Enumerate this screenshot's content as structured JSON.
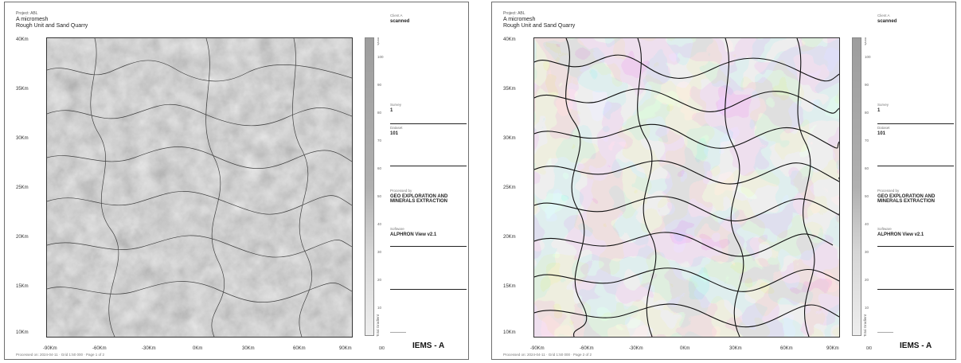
{
  "panels": [
    {
      "id": "left",
      "header": {
        "line1": "Project: ABL",
        "line2": "A micromesh",
        "line3": "Rough Unit and Sand Quarry"
      },
      "y_ticks": [
        "40Km",
        "35Km",
        "30Km",
        "25Km",
        "20Km",
        "15Km",
        "10Km"
      ],
      "x_ticks": [
        "-90Km",
        "-60Km",
        "-30Km",
        "0Km",
        "30Km",
        "60Km",
        "90Km"
      ],
      "scale": {
        "cap": "mm/s",
        "ticks": [
          "100",
          "90",
          "80",
          "70",
          "60",
          "50",
          "40",
          "30",
          "20",
          "10"
        ],
        "title": "Total Gradient",
        "min": "0/0"
      },
      "side": {
        "client_label": "Client A",
        "client_value": "scanned",
        "survey_label": "Survey",
        "survey_value": "1",
        "dataset_label": "Dataset",
        "dataset_value": "101",
        "company_label": "Processed by",
        "company_value": "GEO EXPLORATION AND MINERALS EXTRACTION",
        "software_label": "Software",
        "software_value": "ALPHRON View v2.1"
      },
      "brand": "IEMS - A",
      "footer": "Processed on: 2024-04-11 · Grid 1:50 000 · Page 1 of 2",
      "style": "shaded"
    },
    {
      "id": "right",
      "header": {
        "line1": "Project: ABL",
        "line2": "A micromesh",
        "line3": "Rough Unit and Sand Quarry"
      },
      "y_ticks": [
        "40Km",
        "35Km",
        "30Km",
        "25Km",
        "20Km",
        "15Km",
        "10Km"
      ],
      "x_ticks": [
        "-90Km",
        "-60Km",
        "-30Km",
        "0Km",
        "30Km",
        "60Km",
        "90Km"
      ],
      "scale": {
        "cap": "mm/s",
        "ticks": [
          "100",
          "90",
          "80",
          "70",
          "60",
          "50",
          "40",
          "30",
          "20",
          "10"
        ],
        "title": "Total Gradient",
        "min": "0/0"
      },
      "side": {
        "client_label": "Client A",
        "client_value": "scanned",
        "survey_label": "Survey",
        "survey_value": "1",
        "dataset_label": "Dataset",
        "dataset_value": "101",
        "company_label": "Processed by",
        "company_value": "GEO EXPLORATION AND MINERALS EXTRACTION",
        "software_label": "Software",
        "software_value": "ALPHRON View v2.1"
      },
      "brand": "IEMS - A",
      "footer": "Processed on: 2024-04-11 · Grid 1:50 000 · Page 2 of 2",
      "style": "contour"
    }
  ],
  "colors": {
    "frame": "#6e6e6e",
    "shaded_base": "#6b6b6b",
    "contour_light": "#ececec",
    "contour_dark": "#a5a5a5"
  }
}
